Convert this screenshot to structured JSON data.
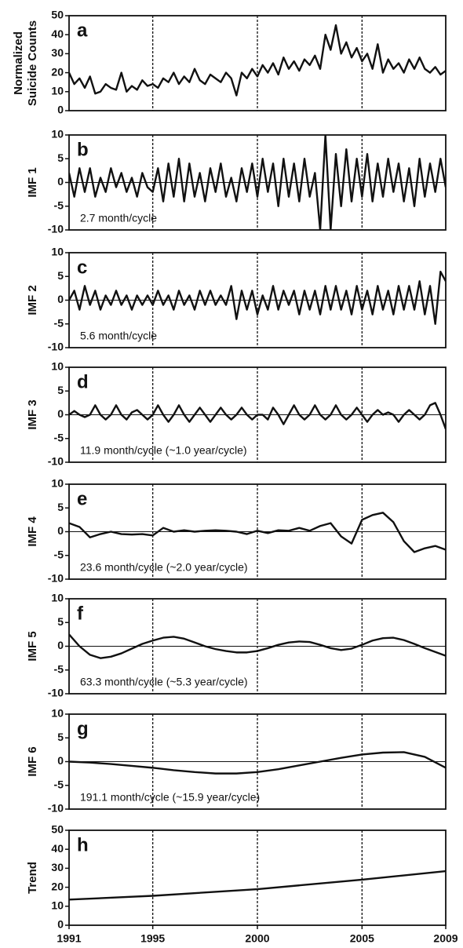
{
  "chart_data": [
    {
      "type": "line",
      "title": "a",
      "ylabel": [
        "Normalized",
        "Suicide Counts"
      ],
      "color": "#111111",
      "x": [
        1991,
        1991.25,
        1991.5,
        1991.75,
        1992,
        1992.25,
        1992.5,
        1992.75,
        1993,
        1993.25,
        1993.5,
        1993.75,
        1994,
        1994.25,
        1994.5,
        1994.75,
        1995,
        1995.25,
        1995.5,
        1995.75,
        1996,
        1996.25,
        1996.5,
        1996.75,
        1997,
        1997.25,
        1997.5,
        1997.75,
        1998,
        1998.25,
        1998.5,
        1998.75,
        1999,
        1999.25,
        1999.5,
        1999.75,
        2000,
        2000.25,
        2000.5,
        2000.75,
        2001,
        2001.25,
        2001.5,
        2001.75,
        2002,
        2002.25,
        2002.5,
        2002.75,
        2003,
        2003.25,
        2003.5,
        2003.75,
        2004,
        2004.25,
        2004.5,
        2004.75,
        2005,
        2005.25,
        2005.5,
        2005.75,
        2006,
        2006.25,
        2006.5,
        2006.75,
        2007,
        2007.25,
        2007.5,
        2007.75,
        2008,
        2008.25,
        2008.5,
        2008.75,
        2009
      ],
      "values": [
        20,
        14,
        17,
        12,
        18,
        9,
        10,
        14,
        12,
        11,
        20,
        10,
        13,
        11,
        16,
        13,
        14,
        12,
        17,
        15,
        20,
        14,
        18,
        15,
        22,
        16,
        14,
        19,
        17,
        15,
        20,
        17,
        8,
        20,
        17,
        22,
        18,
        24,
        20,
        25,
        19,
        28,
        22,
        26,
        21,
        27,
        24,
        29,
        22,
        40,
        32,
        45,
        30,
        36,
        28,
        33,
        26,
        30,
        22,
        35,
        20,
        27,
        22,
        25,
        20,
        27,
        22,
        28,
        22,
        20,
        23,
        19,
        21
      ],
      "xlim": [
        1991,
        2009
      ],
      "ylim": [
        0,
        50
      ],
      "yticks": [
        0,
        10,
        20,
        30,
        40,
        50
      ],
      "vlines": [
        1995,
        2000,
        2005
      ],
      "zero_line": false
    },
    {
      "type": "line",
      "title": "b",
      "ylabel": "IMF 1",
      "annotation": "2.7 month/cycle",
      "color": "#111111",
      "x": [
        1991,
        1991.25,
        1991.5,
        1991.75,
        1992,
        1992.25,
        1992.5,
        1992.75,
        1993,
        1993.25,
        1993.5,
        1993.75,
        1994,
        1994.25,
        1994.5,
        1994.75,
        1995,
        1995.25,
        1995.5,
        1995.75,
        1996,
        1996.25,
        1996.5,
        1996.75,
        1997,
        1997.25,
        1997.5,
        1997.75,
        1998,
        1998.25,
        1998.5,
        1998.75,
        1999,
        1999.25,
        1999.5,
        1999.75,
        2000,
        2000.25,
        2000.5,
        2000.75,
        2001,
        2001.25,
        2001.5,
        2001.75,
        2002,
        2002.25,
        2002.5,
        2002.75,
        2003,
        2003.25,
        2003.5,
        2003.75,
        2004,
        2004.25,
        2004.5,
        2004.75,
        2005,
        2005.25,
        2005.5,
        2005.75,
        2006,
        2006.25,
        2006.5,
        2006.75,
        2007,
        2007.25,
        2007.5,
        2007.75,
        2008,
        2008.25,
        2008.5,
        2008.75,
        2009
      ],
      "values": [
        2,
        -3,
        3,
        -2,
        3,
        -3,
        1,
        -2,
        3,
        -1,
        2,
        -2,
        1,
        -3,
        2,
        -1,
        -2,
        3,
        -4,
        4,
        -3,
        5,
        -4,
        4,
        -3,
        2,
        -4,
        3,
        -2,
        4,
        -3,
        1,
        -4,
        3,
        -2,
        4,
        -3,
        5,
        -2,
        4,
        -5,
        5,
        -3,
        4,
        -4,
        5,
        -3,
        2,
        -10,
        10,
        -10,
        6,
        -5,
        7,
        -4,
        5,
        -3,
        6,
        -4,
        4,
        -3,
        5,
        -2,
        4,
        -4,
        3,
        -5,
        5,
        -3,
        4,
        -2,
        5,
        -1
      ],
      "xlim": [
        1991,
        2009
      ],
      "ylim": [
        -10,
        10
      ],
      "yticks": [
        -10,
        -5,
        0,
        5,
        10
      ],
      "vlines": [
        1995,
        2000,
        2005
      ],
      "zero_line": true
    },
    {
      "type": "line",
      "title": "c",
      "ylabel": "IMF 2",
      "annotation": "5.6 month/cycle",
      "color": "#111111",
      "x": [
        1991,
        1991.25,
        1991.5,
        1991.75,
        1992,
        1992.25,
        1992.5,
        1992.75,
        1993,
        1993.25,
        1993.5,
        1993.75,
        1994,
        1994.25,
        1994.5,
        1994.75,
        1995,
        1995.25,
        1995.5,
        1995.75,
        1996,
        1996.25,
        1996.5,
        1996.75,
        1997,
        1997.25,
        1997.5,
        1997.75,
        1998,
        1998.25,
        1998.5,
        1998.75,
        1999,
        1999.25,
        1999.5,
        1999.75,
        2000,
        2000.25,
        2000.5,
        2000.75,
        2001,
        2001.25,
        2001.5,
        2001.75,
        2002,
        2002.25,
        2002.5,
        2002.75,
        2003,
        2003.25,
        2003.5,
        2003.75,
        2004,
        2004.25,
        2004.5,
        2004.75,
        2005,
        2005.25,
        2005.5,
        2005.75,
        2006,
        2006.25,
        2006.5,
        2006.75,
        2007,
        2007.25,
        2007.5,
        2007.75,
        2008,
        2008.25,
        2008.5,
        2008.75,
        2009
      ],
      "values": [
        0,
        2,
        -2,
        3,
        -1,
        2,
        -2,
        1,
        -1,
        2,
        -1,
        1,
        -2,
        1,
        -1,
        1,
        -1,
        2,
        -1,
        1,
        -2,
        2,
        -1,
        1,
        -2,
        2,
        -1,
        2,
        -1,
        1,
        -1,
        3,
        -4,
        2,
        -2,
        2,
        -3,
        1,
        -2,
        3,
        -2,
        2,
        -1,
        2,
        -3,
        2,
        -2,
        2,
        -3,
        3,
        -2,
        3,
        -2,
        2,
        -3,
        3,
        -2,
        2,
        -3,
        3,
        -2,
        2,
        -3,
        3,
        -2,
        3,
        -2,
        4,
        -3,
        3,
        -5,
        6,
        4
      ],
      "xlim": [
        1991,
        2009
      ],
      "ylim": [
        -10,
        10
      ],
      "yticks": [
        -10,
        -5,
        0,
        5,
        10
      ],
      "vlines": [
        1995,
        2000,
        2005
      ],
      "zero_line": true
    },
    {
      "type": "line",
      "title": "d",
      "ylabel": "IMF 3",
      "annotation": "11.9 month/cycle (~1.0 year/cycle)",
      "color": "#111111",
      "x": [
        1991,
        1991.25,
        1991.5,
        1991.75,
        1992,
        1992.25,
        1992.5,
        1992.75,
        1993,
        1993.25,
        1993.5,
        1993.75,
        1994,
        1994.25,
        1994.5,
        1994.75,
        1995,
        1995.25,
        1995.5,
        1995.75,
        1996,
        1996.25,
        1996.5,
        1996.75,
        1997,
        1997.25,
        1997.5,
        1997.75,
        1998,
        1998.25,
        1998.5,
        1998.75,
        1999,
        1999.25,
        1999.5,
        1999.75,
        2000,
        2000.25,
        2000.5,
        2000.75,
        2001,
        2001.25,
        2001.5,
        2001.75,
        2002,
        2002.25,
        2002.5,
        2002.75,
        2003,
        2003.25,
        2003.5,
        2003.75,
        2004,
        2004.25,
        2004.5,
        2004.75,
        2005,
        2005.25,
        2005.5,
        2005.75,
        2006,
        2006.25,
        2006.5,
        2006.75,
        2007,
        2007.25,
        2007.5,
        2007.75,
        2008,
        2008.25,
        2008.5,
        2008.75,
        2009
      ],
      "values": [
        0,
        0.8,
        0,
        -0.5,
        0,
        2,
        0,
        -1,
        0,
        2,
        0,
        -1,
        0.5,
        1,
        0,
        -1,
        0,
        2,
        0,
        -1.5,
        0,
        2,
        0,
        -1.5,
        0,
        1.5,
        0,
        -1.5,
        0,
        1.5,
        0,
        -1,
        0,
        1.5,
        0,
        -1,
        0,
        0,
        -1,
        1.5,
        0,
        -2,
        0,
        2,
        0,
        -1,
        0,
        2,
        0,
        -1,
        0,
        2,
        0,
        -1,
        0,
        1.5,
        0,
        -1.5,
        0,
        1,
        0,
        0.5,
        0,
        -1.5,
        0,
        1,
        0,
        -1,
        0,
        2,
        2.5,
        0,
        -3
      ],
      "xlim": [
        1991,
        2009
      ],
      "ylim": [
        -10,
        10
      ],
      "yticks": [
        -10,
        -5,
        0,
        5,
        10
      ],
      "vlines": [
        1995,
        2000,
        2005
      ],
      "zero_line": true
    },
    {
      "type": "line",
      "title": "e",
      "ylabel": "IMF 4",
      "annotation": "23.6 month/cycle (~2.0 year/cycle)",
      "color": "#111111",
      "x": [
        1991,
        1991.5,
        1992,
        1992.5,
        1993,
        1993.5,
        1994,
        1994.5,
        1995,
        1995.5,
        1996,
        1996.5,
        1997,
        1997.5,
        1998,
        1998.5,
        1999,
        1999.5,
        2000,
        2000.5,
        2001,
        2001.5,
        2002,
        2002.5,
        2003,
        2003.5,
        2004,
        2004.5,
        2005,
        2005.5,
        2006,
        2006.5,
        2007,
        2007.5,
        2008,
        2008.5,
        2009
      ],
      "values": [
        1.8,
        1,
        -1.2,
        -0.5,
        0,
        -0.5,
        -0.6,
        -0.5,
        -0.8,
        0.8,
        0,
        0.3,
        0,
        0.2,
        0.3,
        0.2,
        0,
        -0.5,
        0.2,
        -0.3,
        0.3,
        0.2,
        0.8,
        0.2,
        1.2,
        1.8,
        -1,
        -2.5,
        2.5,
        3.5,
        4,
        2,
        -2,
        -4.3,
        -3.5,
        -3,
        -3.8
      ],
      "xlim": [
        1991,
        2009
      ],
      "ylim": [
        -10,
        10
      ],
      "yticks": [
        -10,
        -5,
        0,
        5,
        10
      ],
      "vlines": [
        1995,
        2000,
        2005
      ],
      "zero_line": true
    },
    {
      "type": "line",
      "title": "f",
      "ylabel": "IMF 5",
      "annotation": "63.3 month/cycle (~5.3 year/cycle)",
      "color": "#111111",
      "x": [
        1991,
        1991.5,
        1992,
        1992.5,
        1993,
        1993.5,
        1994,
        1994.5,
        1995,
        1995.5,
        1996,
        1996.5,
        1997,
        1997.5,
        1998,
        1998.5,
        1999,
        1999.5,
        2000,
        2000.5,
        2001,
        2001.5,
        2002,
        2002.5,
        2003,
        2003.5,
        2004,
        2004.5,
        2005,
        2005.5,
        2006,
        2006.5,
        2007,
        2007.5,
        2008,
        2008.5,
        2009
      ],
      "values": [
        2.5,
        0,
        -1.8,
        -2.5,
        -2.2,
        -1.5,
        -0.5,
        0.5,
        1.2,
        1.8,
        2,
        1.6,
        0.8,
        0,
        -0.6,
        -1,
        -1.3,
        -1.3,
        -1,
        -0.4,
        0.3,
        0.8,
        1,
        0.9,
        0.3,
        -0.4,
        -0.8,
        -0.5,
        0.3,
        1.2,
        1.7,
        1.8,
        1.3,
        0.5,
        -0.4,
        -1.2,
        -2
      ],
      "xlim": [
        1991,
        2009
      ],
      "ylim": [
        -10,
        10
      ],
      "yticks": [
        -10,
        -5,
        0,
        5,
        10
      ],
      "vlines": [
        1995,
        2000,
        2005
      ],
      "zero_line": true
    },
    {
      "type": "line",
      "title": "g",
      "ylabel": "IMF 6",
      "annotation": "191.1 month/cycle (~15.9 year/cycle)",
      "color": "#111111",
      "x": [
        1991,
        1992,
        1993,
        1994,
        1995,
        1996,
        1997,
        1998,
        1999,
        2000,
        2001,
        2002,
        2003,
        2004,
        2005,
        2006,
        2007,
        2008,
        2009
      ],
      "values": [
        0,
        -0.2,
        -0.5,
        -0.9,
        -1.3,
        -1.8,
        -2.2,
        -2.5,
        -2.5,
        -2.2,
        -1.6,
        -0.8,
        0,
        0.8,
        1.5,
        1.9,
        2,
        1,
        -1.3
      ],
      "xlim": [
        1991,
        2009
      ],
      "ylim": [
        -10,
        10
      ],
      "yticks": [
        -10,
        -5,
        0,
        5,
        10
      ],
      "vlines": [
        1995,
        2000,
        2005
      ],
      "zero_line": true
    },
    {
      "type": "line",
      "title": "h",
      "ylabel": "Trend",
      "color": "#111111",
      "x": [
        1991,
        1995,
        2000,
        2005,
        2009
      ],
      "values": [
        13.5,
        15.5,
        19,
        24,
        28.5
      ],
      "xlim": [
        1991,
        2009
      ],
      "ylim": [
        0,
        50
      ],
      "yticks": [
        0,
        10,
        20,
        30,
        40,
        50
      ],
      "xticks": [
        1991,
        1995,
        2000,
        2005,
        2009
      ],
      "vlines": [
        1995,
        2000,
        2005
      ],
      "zero_line": false
    }
  ]
}
